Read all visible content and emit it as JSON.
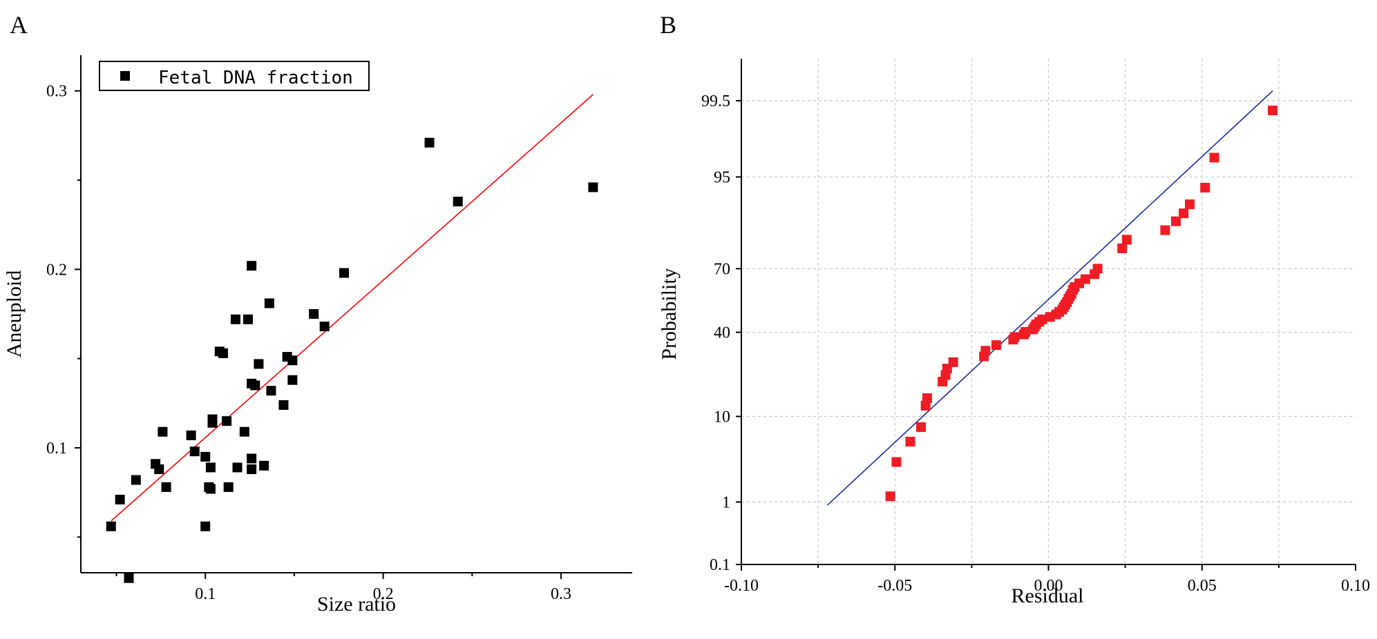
{
  "panels": {
    "a": {
      "letter": "A"
    },
    "b": {
      "letter": "B"
    }
  },
  "chart_data": [
    {
      "type": "scatter",
      "panel": "A",
      "title": "",
      "xlabel": "Size ratio",
      "ylabel": "Aneuploid",
      "xlim": [
        0.03,
        0.34
      ],
      "ylim": [
        0.03,
        0.32
      ],
      "xticks": [
        0.1,
        0.2,
        0.3
      ],
      "xtick_labels": [
        "0.1",
        "0.2",
        "0.3"
      ],
      "yticks": [
        0.1,
        0.2,
        0.3
      ],
      "ytick_labels": [
        "0.1",
        "0.2",
        "0.3"
      ],
      "legend": {
        "label": "Fetal DNA fraction",
        "position": "top-left"
      },
      "grid": false,
      "series": [
        {
          "name": "Fetal DNA fraction",
          "marker": "square",
          "color": "#000000",
          "points": [
            [
              0.047,
              0.056
            ],
            [
              0.052,
              0.071
            ],
            [
              0.057,
              0.027
            ],
            [
              0.061,
              0.082
            ],
            [
              0.072,
              0.091
            ],
            [
              0.074,
              0.088
            ],
            [
              0.076,
              0.109
            ],
            [
              0.078,
              0.078
            ],
            [
              0.092,
              0.107
            ],
            [
              0.094,
              0.098
            ],
            [
              0.1,
              0.095
            ],
            [
              0.1,
              0.056
            ],
            [
              0.102,
              0.078
            ],
            [
              0.103,
              0.077
            ],
            [
              0.103,
              0.089
            ],
            [
              0.104,
              0.116
            ],
            [
              0.104,
              0.114
            ],
            [
              0.108,
              0.154
            ],
            [
              0.11,
              0.153
            ],
            [
              0.112,
              0.115
            ],
            [
              0.113,
              0.078
            ],
            [
              0.117,
              0.172
            ],
            [
              0.118,
              0.089
            ],
            [
              0.122,
              0.109
            ],
            [
              0.124,
              0.172
            ],
            [
              0.126,
              0.202
            ],
            [
              0.126,
              0.136
            ],
            [
              0.126,
              0.094
            ],
            [
              0.126,
              0.088
            ],
            [
              0.128,
              0.135
            ],
            [
              0.13,
              0.147
            ],
            [
              0.133,
              0.09
            ],
            [
              0.136,
              0.181
            ],
            [
              0.137,
              0.132
            ],
            [
              0.144,
              0.124
            ],
            [
              0.146,
              0.151
            ],
            [
              0.149,
              0.149
            ],
            [
              0.149,
              0.138
            ],
            [
              0.161,
              0.175
            ],
            [
              0.167,
              0.168
            ],
            [
              0.178,
              0.198
            ],
            [
              0.226,
              0.271
            ],
            [
              0.242,
              0.238
            ],
            [
              0.318,
              0.246
            ]
          ]
        }
      ],
      "fit_line": {
        "color": "#ff0000",
        "x": [
          0.047,
          0.318
        ],
        "y": [
          0.059,
          0.298
        ]
      }
    },
    {
      "type": "scatter",
      "subtype": "normal-probability-plot",
      "panel": "B",
      "title": "",
      "xlabel": "Residual",
      "ylabel": "Probability",
      "xlim": [
        -0.1,
        0.1
      ],
      "xticks": [
        -0.1,
        -0.05,
        0.0,
        0.05,
        0.1
      ],
      "xtick_labels": [
        "-0.10",
        "-0.05",
        "0.00",
        "0.05",
        "0.10"
      ],
      "yscale": "normal-probability",
      "ylim": [
        0.1,
        99.9
      ],
      "yticks": [
        0.1,
        1,
        10,
        40,
        70,
        95,
        99.5
      ],
      "ytick_labels": [
        "0.1",
        "1",
        "10",
        "40",
        "70",
        "95",
        "99.5"
      ],
      "grid": true,
      "series": [
        {
          "name": "Residual",
          "marker": "square",
          "color": "#ee1c25",
          "points": [
            [
              -0.0515,
              1.2
            ],
            [
              -0.0495,
              3.3
            ],
            [
              -0.045,
              5.6
            ],
            [
              -0.0415,
              7.9
            ],
            [
              -0.04,
              12.5
            ],
            [
              -0.0395,
              14.5
            ],
            [
              -0.0345,
              19.6
            ],
            [
              -0.0335,
              21.9
            ],
            [
              -0.033,
              24.3
            ],
            [
              -0.031,
              26.8
            ],
            [
              -0.021,
              29.2
            ],
            [
              -0.0205,
              31.6
            ],
            [
              -0.017,
              34.1
            ],
            [
              -0.0115,
              36.6
            ],
            [
              -0.011,
              37.8
            ],
            [
              -0.008,
              39.0
            ],
            [
              -0.0075,
              40.2
            ],
            [
              -0.005,
              41.4
            ],
            [
              -0.0045,
              42.6
            ],
            [
              -0.004,
              43.8
            ],
            [
              -0.003,
              45.0
            ],
            [
              -0.002,
              46.2
            ],
            [
              0.0005,
              47.4
            ],
            [
              0.0025,
              48.6
            ],
            [
              0.0035,
              49.8
            ],
            [
              0.0045,
              51.0
            ],
            [
              0.005,
              52.2
            ],
            [
              0.0055,
              53.4
            ],
            [
              0.006,
              54.6
            ],
            [
              0.0065,
              56.2
            ],
            [
              0.007,
              57.4
            ],
            [
              0.0075,
              58.6
            ],
            [
              0.008,
              60.5
            ],
            [
              0.0085,
              61.8
            ],
            [
              0.01,
              63.5
            ],
            [
              0.012,
              65.4
            ],
            [
              0.015,
              67.6
            ],
            [
              0.016,
              70.0
            ],
            [
              0.024,
              78.0
            ],
            [
              0.0255,
              81.0
            ],
            [
              0.038,
              84.0
            ],
            [
              0.0415,
              86.5
            ],
            [
              0.044,
              88.5
            ],
            [
              0.046,
              90.5
            ],
            [
              0.051,
              93.5
            ],
            [
              0.054,
              97.0
            ],
            [
              0.073,
              99.3
            ]
          ]
        }
      ],
      "fit_line": {
        "color": "#1a2a9a",
        "x": [
          -0.072,
          0.073
        ],
        "y": [
          0.9,
          99.65
        ]
      }
    }
  ]
}
